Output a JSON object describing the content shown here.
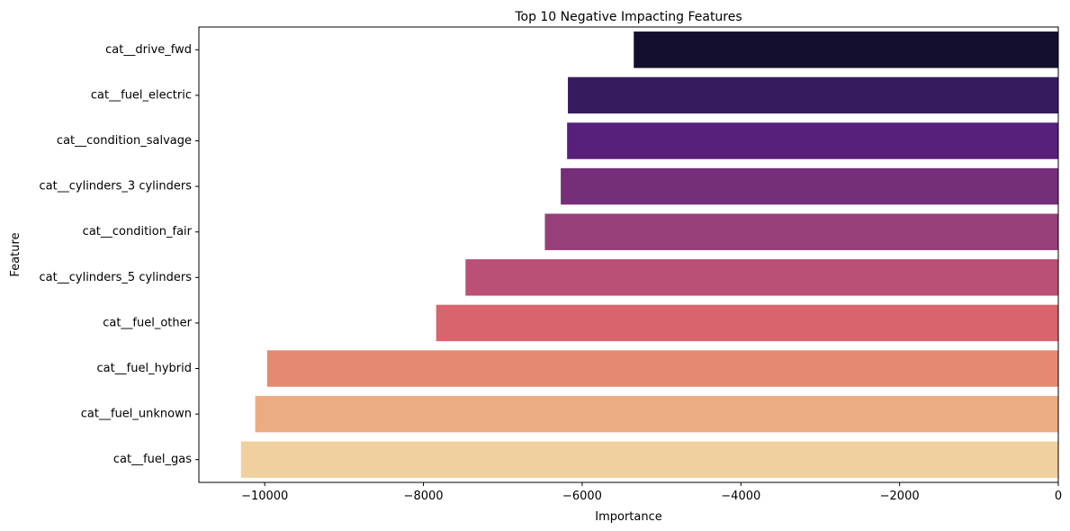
{
  "chart_data": {
    "type": "bar",
    "orientation": "horizontal",
    "title": "Top 10 Negative Impacting Features",
    "xlabel": "Importance",
    "ylabel": "Feature",
    "categories": [
      "cat__drive_fwd",
      "cat__fuel_electric",
      "cat__condition_salvage",
      "cat__cylinders_3 cylinders",
      "cat__condition_fair",
      "cat__cylinders_5 cylinders",
      "cat__fuel_other",
      "cat__fuel_hybrid",
      "cat__fuel_unknown",
      "cat__fuel_gas"
    ],
    "values": [
      -5350,
      -6180,
      -6190,
      -6270,
      -6470,
      -7470,
      -7840,
      -9970,
      -10120,
      -10300
    ],
    "colors": [
      "#140f2e",
      "#371b5f",
      "#57207a",
      "#752f78",
      "#963f78",
      "#bb5076",
      "#d8646e",
      "#e58a70",
      "#ecac83",
      "#f1d09f"
    ],
    "xlim": [
      -10830,
      0
    ],
    "xticks": [
      -10000,
      -8000,
      -6000,
      -4000,
      -2000,
      0
    ],
    "xtick_labels": [
      "−10000",
      "−8000",
      "−6000",
      "−4000",
      "−2000",
      "0"
    ],
    "grid": false,
    "legend": "none"
  }
}
